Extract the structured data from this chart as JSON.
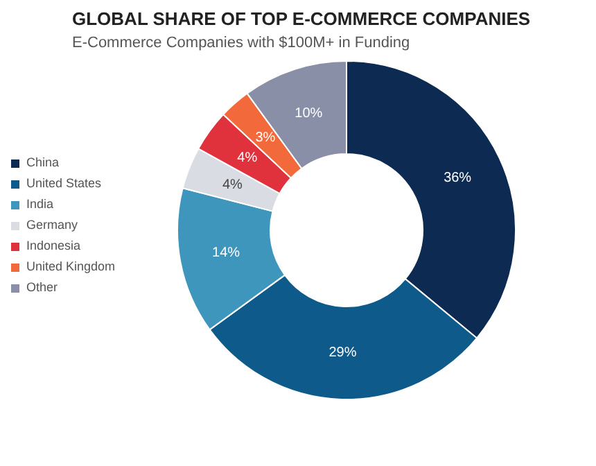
{
  "chart_data": {
    "type": "donut",
    "title": "GLOBAL SHARE OF TOP E-COMMERCE COMPANIES",
    "subtitle": "E-Commerce Companies with $100M+ in Funding",
    "categories": [
      "China",
      "United States",
      "India",
      "Germany",
      "Indonesia",
      "United Kingdom",
      "Other"
    ],
    "values": [
      36,
      29,
      14,
      4,
      4,
      3,
      10
    ],
    "colors": [
      "#0d2b52",
      "#0e5a8a",
      "#3f96bd",
      "#d9dde3",
      "#e0323c",
      "#f26a3b",
      "#8a8fa8"
    ],
    "value_labels": [
      "36%",
      "29%",
      "14%",
      "4%",
      "4%",
      "3%",
      "10%"
    ],
    "legend": "left"
  }
}
